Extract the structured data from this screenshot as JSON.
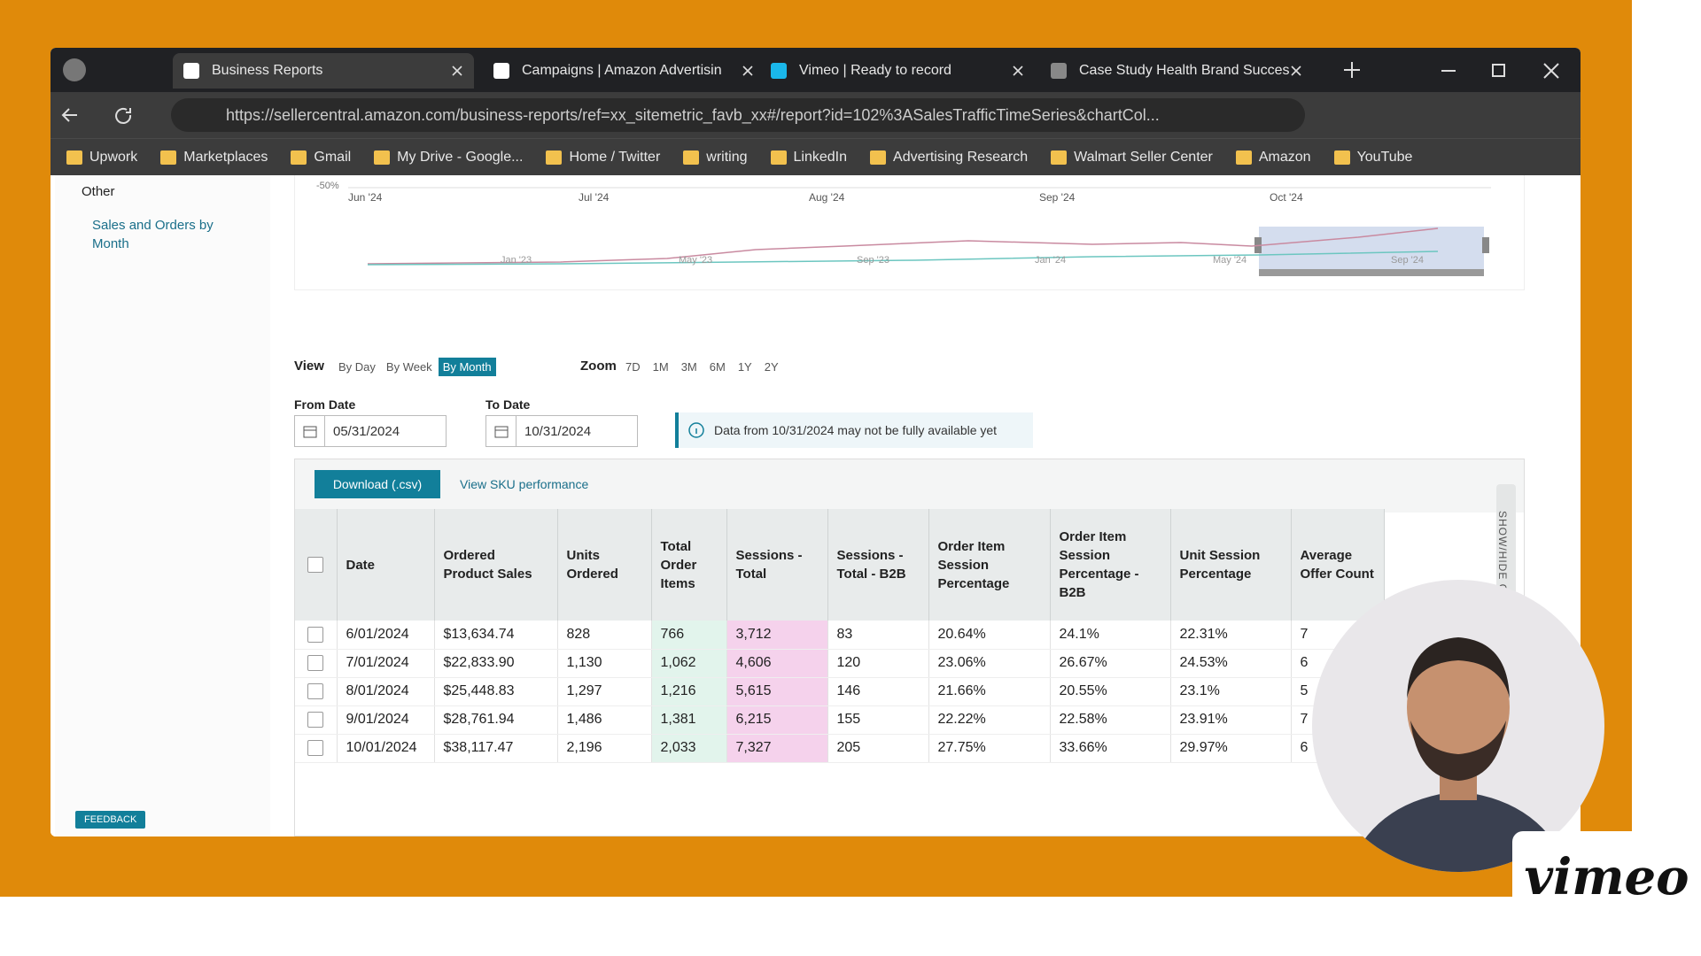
{
  "browser": {
    "tabs": [
      "Business Reports",
      "Campaigns | Amazon Advertisin",
      "Vimeo | Ready to record",
      "Case Study Health Brand Succes"
    ],
    "url": "https://sellercentral.amazon.com/business-reports/ref=xx_sitemetric_favb_xx#/report?id=102%3ASalesTrafficTimeSeries&chartCol...",
    "bookmarks": [
      "Upwork",
      "Marketplaces",
      "Gmail",
      "My Drive - Google...",
      "Home / Twitter",
      "writing",
      "LinkedIn",
      "Advertising Research",
      "Walmart Seller Center",
      "Amazon",
      "YouTube"
    ]
  },
  "sidebar": {
    "heading": "Other",
    "link": "Sales and Orders by Month"
  },
  "chart": {
    "axis_label": "-50%",
    "months": [
      "Jun '24",
      "Jul '24",
      "Aug '24",
      "Sep '24",
      "Oct '24"
    ],
    "navigator_labels": [
      "Jan '23",
      "May '23",
      "Sep '23",
      "Jan '24",
      "May '24",
      "Sep '24"
    ]
  },
  "controls": {
    "view_label": "View",
    "view_options": [
      "By Day",
      "By Week",
      "By Month"
    ],
    "zoom_label": "Zoom",
    "zoom_options": [
      "7D",
      "1M",
      "3M",
      "6M",
      "1Y",
      "2Y"
    ],
    "from_label": "From Date",
    "from_value": "05/31/2024",
    "to_label": "To Date",
    "to_value": "10/31/2024",
    "notice": "Data from 10/31/2024 may not be fully available yet"
  },
  "table": {
    "download": "Download (.csv)",
    "sku_link": "View SKU performance",
    "side_toggle": "SHOW/HIDE COLUMNS",
    "columns": [
      "Date",
      "Ordered Product Sales",
      "Units Ordered",
      "Total Order Items",
      "Sessions - Total",
      "Sessions - Total - B2B",
      "Order Item Session Percentage",
      "Order Item Session Percentage - B2B",
      "Unit Session Percentage",
      "Average Offer Count"
    ],
    "rows": [
      [
        "6/01/2024",
        "$13,634.74",
        "828",
        "766",
        "3,712",
        "83",
        "20.64%",
        "24.1%",
        "22.31%",
        "7"
      ],
      [
        "7/01/2024",
        "$22,833.90",
        "1,130",
        "1,062",
        "4,606",
        "120",
        "23.06%",
        "26.67%",
        "24.53%",
        "6"
      ],
      [
        "8/01/2024",
        "$25,448.83",
        "1,297",
        "1,216",
        "5,615",
        "146",
        "21.66%",
        "20.55%",
        "23.1%",
        "5"
      ],
      [
        "9/01/2024",
        "$28,761.94",
        "1,486",
        "1,381",
        "6,215",
        "155",
        "22.22%",
        "22.58%",
        "23.91%",
        "7"
      ],
      [
        "10/01/2024",
        "$38,117.47",
        "2,196",
        "2,033",
        "7,327",
        "205",
        "27.75%",
        "33.66%",
        "29.97%",
        "6"
      ]
    ]
  },
  "feedback": "FEEDBACK",
  "vimeo": "vimeo"
}
